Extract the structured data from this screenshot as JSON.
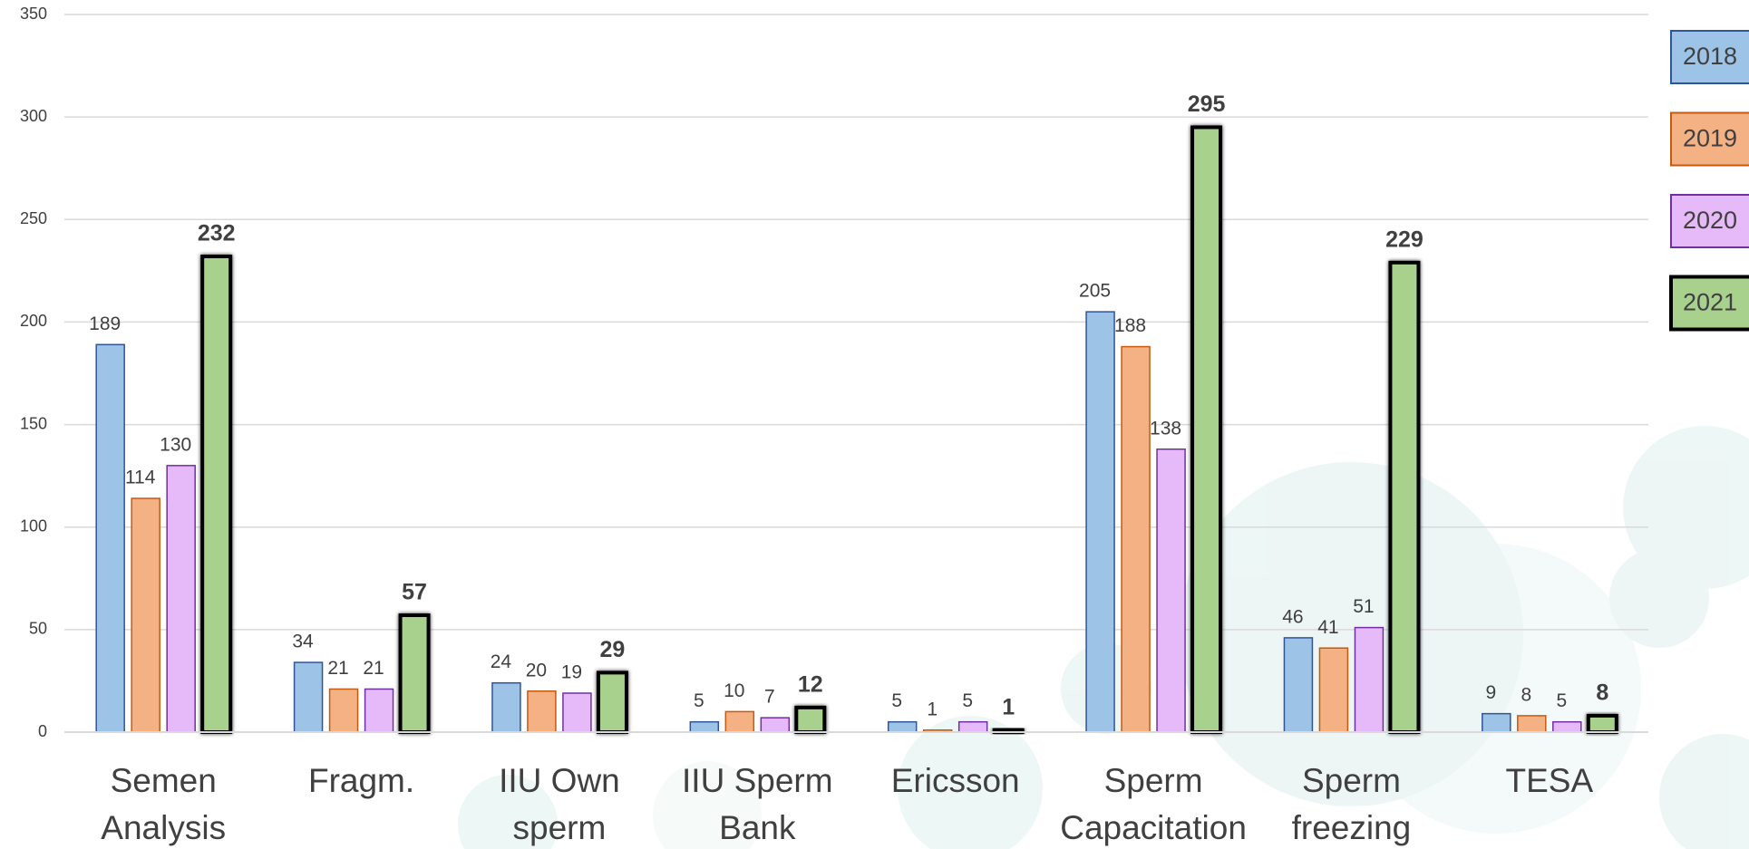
{
  "chart_data": {
    "type": "bar",
    "categories": [
      [
        "Semen",
        "Analysis"
      ],
      [
        "Fragm."
      ],
      [
        "IIU Own",
        "sperm"
      ],
      [
        "IIU Sperm",
        "Bank"
      ],
      [
        "Ericsson"
      ],
      [
        "Sperm",
        "Capacitation"
      ],
      [
        "Sperm",
        "freezing"
      ],
      [
        "TESA"
      ]
    ],
    "series": [
      {
        "name": "2018",
        "color": "#9dc3e6",
        "stroke": "#2f5597",
        "values": [
          189,
          34,
          24,
          5,
          5,
          205,
          46,
          9
        ]
      },
      {
        "name": "2019",
        "color": "#f4b183",
        "stroke": "#c55a11",
        "values": [
          114,
          21,
          20,
          10,
          1,
          188,
          41,
          8
        ]
      },
      {
        "name": "2020",
        "color": "#e6b9f8",
        "stroke": "#7030a0",
        "values": [
          130,
          21,
          19,
          7,
          5,
          138,
          51,
          5
        ]
      },
      {
        "name": "2021",
        "color": "#a9d18e",
        "stroke": "#000000",
        "bold": true,
        "values": [
          232,
          57,
          29,
          12,
          1,
          295,
          229,
          8
        ]
      }
    ],
    "ylim": [
      0,
      350
    ],
    "yticks": [
      0,
      50,
      100,
      150,
      200,
      250,
      300,
      350
    ],
    "grid": true,
    "legend": "right"
  }
}
